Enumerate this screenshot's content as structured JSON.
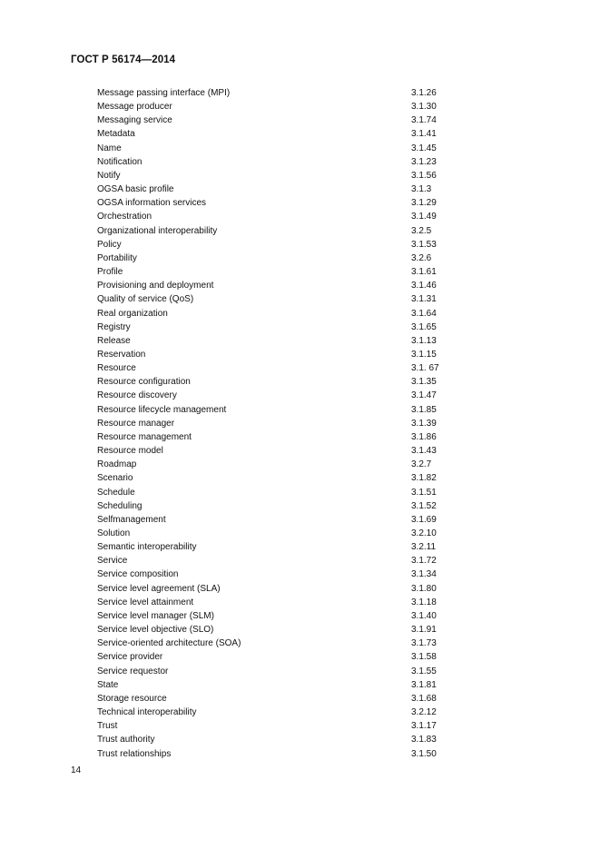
{
  "header": {
    "title": "ГОСТ Р 56174—2014"
  },
  "index": [
    {
      "term": "Message passing interface (MPI)",
      "ref": "3.1.26"
    },
    {
      "term": "Message producer",
      "ref": "3.1.30"
    },
    {
      "term": "Messaging service",
      "ref": "3.1.74"
    },
    {
      "term": "Metadata",
      "ref": "3.1.41"
    },
    {
      "term": "Name",
      "ref": "3.1.45"
    },
    {
      "term": "Notification",
      "ref": "3.1.23"
    },
    {
      "term": "Notify",
      "ref": "3.1.56"
    },
    {
      "term": "OGSA basic profile",
      "ref": "3.1.3"
    },
    {
      "term": "OGSA information services",
      "ref": "3.1.29"
    },
    {
      "term": "Orchestration",
      "ref": "3.1.49"
    },
    {
      "term": "Organizational interoperability",
      "ref": "3.2.5"
    },
    {
      "term": "Policy",
      "ref": "3.1.53"
    },
    {
      "term": "Portability",
      "ref": "3.2.6"
    },
    {
      "term": "Profile",
      "ref": "3.1.61"
    },
    {
      "term": "Provisioning and deployment",
      "ref": "3.1.46"
    },
    {
      "term": "Quality of service (QoS)",
      "ref": "3.1.31"
    },
    {
      "term": "Real organization",
      "ref": "3.1.64"
    },
    {
      "term": "Registry",
      "ref": "3.1.65"
    },
    {
      "term": "Release",
      "ref": "3.1.13"
    },
    {
      "term": "Reservation",
      "ref": "3.1.15"
    },
    {
      "term": "Resource",
      "ref": "3.1. 67"
    },
    {
      "term": "Resource configuration",
      "ref": "3.1.35"
    },
    {
      "term": "Resource discovery",
      "ref": "3.1.47"
    },
    {
      "term": "Resource lifecycle management",
      "ref": "3.1.85"
    },
    {
      "term": "Resource manager",
      "ref": "3.1.39"
    },
    {
      "term": "Resource management",
      "ref": "3.1.86"
    },
    {
      "term": "Resource model",
      "ref": "3.1.43"
    },
    {
      "term": "Roadmap",
      "ref": "3.2.7"
    },
    {
      "term": "Scenario",
      "ref": "3.1.82"
    },
    {
      "term": "Schedule",
      "ref": "3.1.51"
    },
    {
      "term": "Scheduling",
      "ref": "3.1.52"
    },
    {
      "term": "Selfmanagement",
      "ref": "3.1.69"
    },
    {
      "term": "Solution",
      "ref": "3.2.10"
    },
    {
      "term": "Semantic interoperability",
      "ref": "3.2.11"
    },
    {
      "term": "Service",
      "ref": "3.1.72"
    },
    {
      "term": "Service composition",
      "ref": "3.1.34"
    },
    {
      "term": "Service level agreement (SLA)",
      "ref": "3.1.80"
    },
    {
      "term": "Service level attainment",
      "ref": "3.1.18"
    },
    {
      "term": "Service level manager (SLM)",
      "ref": "3.1.40"
    },
    {
      "term": "Service level objective (SLO)",
      "ref": "3.1.91"
    },
    {
      "term": "Service-oriented architecture (SOA)",
      "ref": "3.1.73"
    },
    {
      "term": "Service provider",
      "ref": "3.1.58"
    },
    {
      "term": "Service requestor",
      "ref": "3.1.55"
    },
    {
      "term": "State",
      "ref": "3.1.81"
    },
    {
      "term": "Storage resource",
      "ref": "3.1.68"
    },
    {
      "term": "Technical interoperability",
      "ref": "3.2.12"
    },
    {
      "term": "Trust",
      "ref": "3.1.17"
    },
    {
      "term": "Trust authority",
      "ref": "3.1.83"
    },
    {
      "term": "Trust relationships",
      "ref": "3.1.50"
    }
  ],
  "footer": {
    "page_number": "14"
  }
}
